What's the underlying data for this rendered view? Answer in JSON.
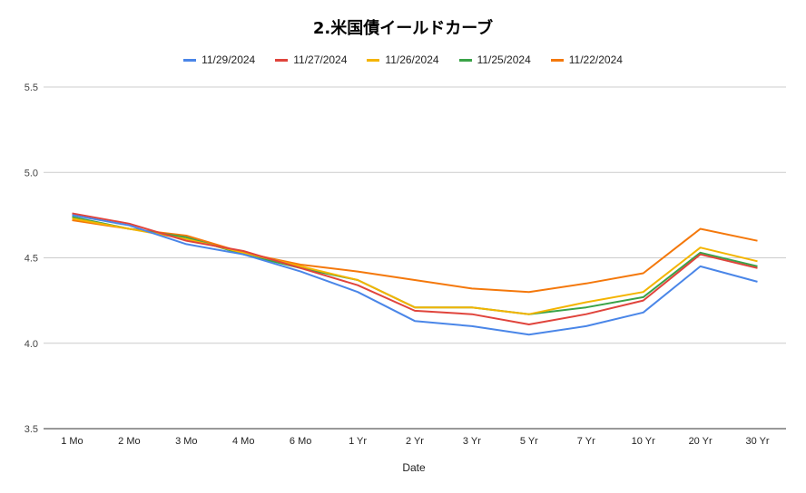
{
  "chart_data": {
    "type": "line",
    "title": "2.米国債イールドカーブ",
    "xlabel": "Date",
    "ylabel": "",
    "categories": [
      "1 Mo",
      "2 Mo",
      "3 Mo",
      "4 Mo",
      "6 Mo",
      "1 Yr",
      "2 Yr",
      "3 Yr",
      "5 Yr",
      "7 Yr",
      "10 Yr",
      "20 Yr",
      "30 Yr"
    ],
    "ylim": [
      3.5,
      5.5
    ],
    "yticks": [
      "3.5",
      "4.0",
      "4.5",
      "5.0",
      "5.5"
    ],
    "grid": true,
    "legend_position": "top",
    "series": [
      {
        "name": "11/29/2024",
        "color": "#4a86e8",
        "values": [
          4.75,
          4.69,
          4.58,
          4.52,
          4.42,
          4.3,
          4.13,
          4.1,
          4.05,
          4.1,
          4.18,
          4.45,
          4.36
        ]
      },
      {
        "name": "11/27/2024",
        "color": "#e0443c",
        "values": [
          4.76,
          4.7,
          4.6,
          4.54,
          4.44,
          4.34,
          4.19,
          4.17,
          4.11,
          4.17,
          4.25,
          4.52,
          4.44
        ]
      },
      {
        "name": "11/26/2024",
        "color": "#f4b400",
        "values": [
          4.73,
          4.67,
          4.61,
          4.53,
          4.45,
          4.37,
          4.21,
          4.21,
          4.17,
          4.24,
          4.3,
          4.56,
          4.48
        ]
      },
      {
        "name": "11/25/2024",
        "color": "#3aa348",
        "values": [
          4.74,
          4.67,
          4.62,
          4.52,
          4.44,
          4.37,
          4.21,
          4.21,
          4.17,
          4.21,
          4.27,
          4.53,
          4.45
        ]
      },
      {
        "name": "11/22/2024",
        "color": "#f4780b",
        "values": [
          4.72,
          4.67,
          4.63,
          4.53,
          4.46,
          4.42,
          4.37,
          4.32,
          4.3,
          4.35,
          4.41,
          4.67,
          4.6
        ]
      }
    ]
  }
}
